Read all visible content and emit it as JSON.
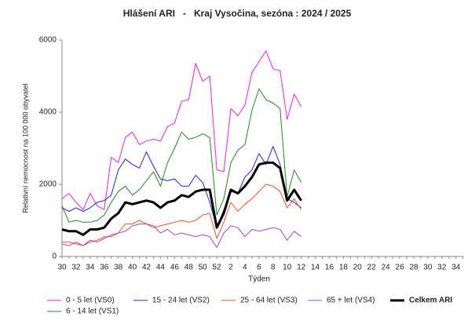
{
  "chart_data": {
    "type": "line",
    "title": "Hlášení ARI   -   Kraj Vysočina, sezóna : 2024 / 2025",
    "x_label": "Týden",
    "y_label": "Relativní nemocnost na 100 000 obyvatel",
    "categories": [
      "30",
      null,
      "32",
      null,
      "34",
      null,
      "36",
      null,
      "38",
      null,
      "40",
      null,
      "42",
      null,
      "44",
      null,
      "46",
      null,
      "48",
      null,
      "50",
      null,
      "52",
      null,
      "2",
      null,
      "4",
      null,
      "6",
      null,
      "8",
      null,
      "10",
      null,
      "12",
      null,
      "14",
      null,
      "16",
      null,
      "18",
      null,
      "20",
      null,
      "22",
      null,
      "24",
      null,
      "26",
      null,
      "28",
      null,
      "30",
      null,
      "32",
      null,
      "34",
      null
    ],
    "ylim": [
      0,
      6000
    ],
    "yticks": [
      0,
      2000,
      4000,
      6000
    ],
    "grid": false,
    "series": [
      {
        "name": "0 - 5 let (VS0)",
        "color": "#ee22ee",
        "width": 1,
        "values": [
          1600,
          1750,
          1500,
          1300,
          1750,
          1400,
          1300,
          2750,
          2600,
          3300,
          3450,
          3100,
          3200,
          3250,
          3200,
          3600,
          3700,
          4300,
          4350,
          5350,
          4850,
          5000,
          2400,
          2350,
          4100,
          3900,
          4200,
          5100,
          5400,
          5700,
          5200,
          5150,
          3800,
          4500,
          4150,
          null,
          null,
          null,
          null,
          null,
          null,
          null,
          null,
          null,
          null,
          null,
          null,
          null,
          null,
          null,
          null,
          null,
          null,
          null,
          null,
          null,
          null,
          null
        ]
      },
      {
        "name": "6 - 14 let (VS1)",
        "color": "#228822",
        "width": 1,
        "values": [
          1400,
          950,
          1000,
          950,
          950,
          1000,
          1150,
          1500,
          1800,
          1950,
          1700,
          1850,
          2100,
          2350,
          1950,
          2600,
          3000,
          3450,
          3250,
          3300,
          3400,
          3300,
          1150,
          1600,
          2600,
          2950,
          3100,
          4050,
          4650,
          4350,
          4250,
          4100,
          1650,
          2400,
          2050,
          null,
          null,
          null,
          null,
          null,
          null,
          null,
          null,
          null,
          null,
          null,
          null,
          null,
          null,
          null,
          null,
          null,
          null,
          null,
          null,
          null,
          null,
          null
        ]
      },
      {
        "name": "15 - 24 let (VS2)",
        "color": "#2222dd",
        "width": 1,
        "values": [
          1350,
          1250,
          1350,
          1250,
          1350,
          1500,
          1550,
          1700,
          2400,
          2700,
          2550,
          2450,
          2900,
          2500,
          2150,
          2100,
          2150,
          1950,
          1950,
          2250,
          2050,
          1500,
          800,
          1300,
          1800,
          1750,
          2200,
          2400,
          2850,
          2550,
          3050,
          2550,
          1600,
          1500,
          1350,
          null,
          null,
          null,
          null,
          null,
          null,
          null,
          null,
          null,
          null,
          null,
          null,
          null,
          null,
          null,
          null,
          null,
          null,
          null,
          null,
          null,
          null,
          null
        ]
      },
      {
        "name": "25 - 64 let (VS3)",
        "color": "#ee5522",
        "width": 1,
        "values": [
          400,
          400,
          350,
          300,
          400,
          450,
          550,
          550,
          650,
          900,
          900,
          1000,
          900,
          800,
          850,
          900,
          950,
          1000,
          950,
          1000,
          1150,
          1200,
          500,
          950,
          1500,
          1250,
          1450,
          1600,
          1800,
          2000,
          1950,
          1800,
          1350,
          1600,
          1300,
          null,
          null,
          null,
          null,
          null,
          null,
          null,
          null,
          null,
          null,
          null,
          null,
          null,
          null,
          null,
          null,
          null,
          null,
          null,
          null,
          null,
          null,
          null
        ]
      },
      {
        "name": "65 + let (VS4)",
        "color": "#aa44cc",
        "width": 1,
        "values": [
          350,
          300,
          400,
          300,
          450,
          400,
          500,
          600,
          650,
          700,
          850,
          900,
          900,
          850,
          650,
          750,
          600,
          650,
          600,
          550,
          600,
          550,
          250,
          650,
          850,
          800,
          550,
          750,
          700,
          750,
          800,
          750,
          450,
          700,
          550,
          null,
          null,
          null,
          null,
          null,
          null,
          null,
          null,
          null,
          null,
          null,
          null,
          null,
          null,
          null,
          null,
          null,
          null,
          null,
          null,
          null,
          null,
          null
        ]
      },
      {
        "name": "Celkem ARI",
        "color": "#000000",
        "width": 3,
        "values": [
          750,
          700,
          700,
          600,
          750,
          750,
          800,
          1050,
          1200,
          1500,
          1450,
          1500,
          1550,
          1500,
          1350,
          1500,
          1550,
          1700,
          1650,
          1800,
          1850,
          1850,
          800,
          1200,
          1850,
          1750,
          1950,
          2200,
          2550,
          2600,
          2600,
          2450,
          1550,
          1850,
          1550,
          null,
          null,
          null,
          null,
          null,
          null,
          null,
          null,
          null,
          null,
          null,
          null,
          null,
          null,
          null,
          null,
          null,
          null,
          null,
          null,
          null,
          null,
          null
        ]
      }
    ]
  }
}
